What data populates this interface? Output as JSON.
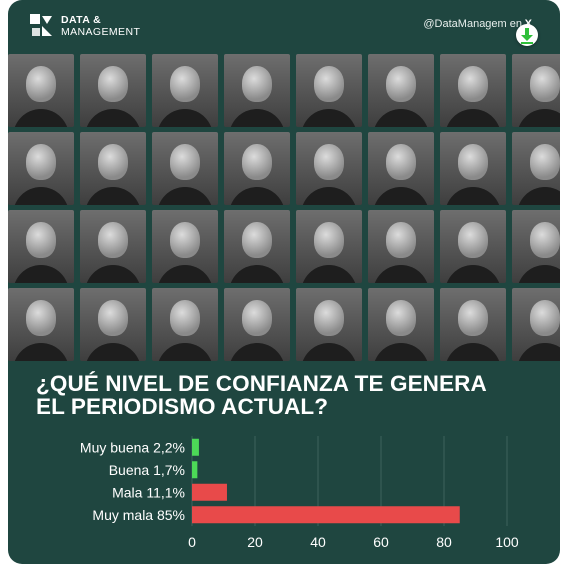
{
  "header": {
    "brand_line1": "DATA &",
    "brand_line2": "MANAGEMENT",
    "handle": "@DataManagem en",
    "x_glyph": "X"
  },
  "photo_grid": {
    "rows": 4,
    "cols": 8
  },
  "question": {
    "line1": "¿QUÉ NIVEL DE CONFIANZA TE GENERA",
    "line2": "EL PERIODISMO ACTUAL?"
  },
  "colors": {
    "background": "#1f4640",
    "positive_bar": "#4cd957",
    "negative_bar": "#e84a4a",
    "text": "#ffffff",
    "download_icon": "#2fbf3a"
  },
  "chart_data": {
    "type": "bar",
    "orientation": "horizontal",
    "categories": [
      "Muy buena 2,2%",
      "Buena 1,7%",
      "Mala 11,1%",
      "Muy mala 85%"
    ],
    "values": [
      2.2,
      1.7,
      11.1,
      85
    ],
    "bar_colors": [
      "#4cd957",
      "#4cd957",
      "#e84a4a",
      "#e84a4a"
    ],
    "xlim": [
      0,
      100
    ],
    "x_ticks": [
      0,
      20,
      40,
      60,
      80,
      100
    ],
    "grid": true,
    "title": "",
    "xlabel": "",
    "ylabel": ""
  }
}
